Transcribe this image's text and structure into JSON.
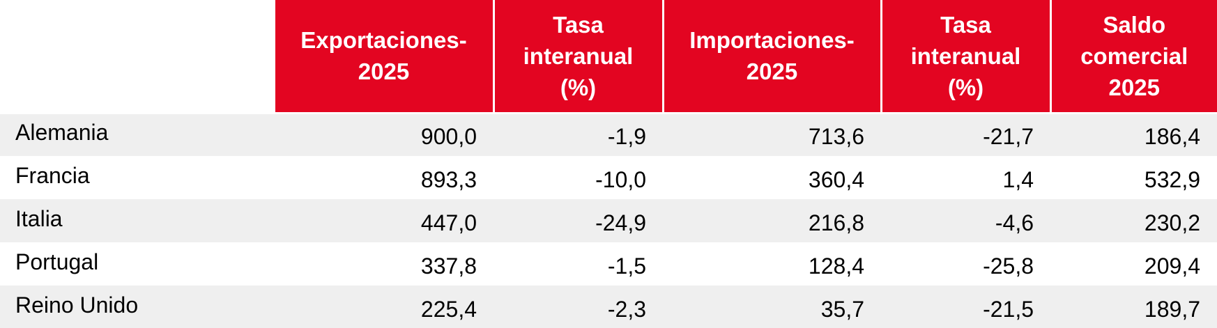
{
  "table": {
    "headers": [
      [
        "Exportaciones-",
        "2025"
      ],
      [
        "Tasa",
        "interanual",
        "(%)"
      ],
      [
        "Importaciones-",
        "2025"
      ],
      [
        "Tasa",
        "interanual",
        "(%)"
      ],
      [
        "Saldo",
        "comercial",
        "2025"
      ]
    ],
    "rows": [
      {
        "country": "Alemania",
        "exports": "900,0",
        "exports_rate": "-1,9",
        "imports": "713,6",
        "imports_rate": "-21,7",
        "balance": "186,4"
      },
      {
        "country": "Francia",
        "exports": "893,3",
        "exports_rate": "-10,0",
        "imports": "360,4",
        "imports_rate": "1,4",
        "balance": "532,9"
      },
      {
        "country": "Italia",
        "exports": "447,0",
        "exports_rate": "-24,9",
        "imports": "216,8",
        "imports_rate": "-4,6",
        "balance": "230,2"
      },
      {
        "country": "Portugal",
        "exports": "337,8",
        "exports_rate": "-1,5",
        "imports": "128,4",
        "imports_rate": "-25,8",
        "balance": "209,4"
      },
      {
        "country": "Reino Unido",
        "exports": "225,4",
        "exports_rate": "-2,3",
        "imports": "35,7",
        "imports_rate": "-21,5",
        "balance": "189,7"
      }
    ]
  },
  "colors": {
    "header_bg": "#e30521",
    "header_text": "#ffffff",
    "row_stripe": "#efefef"
  }
}
